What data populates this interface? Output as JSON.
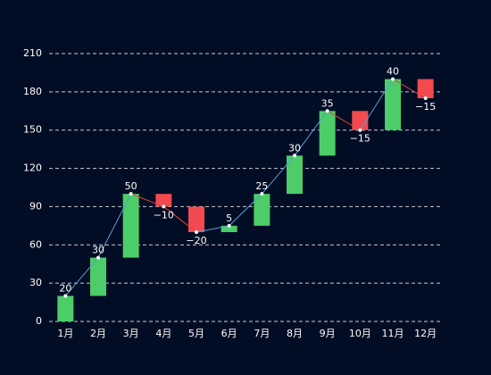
{
  "chart_data": {
    "type": "waterfall",
    "categories": [
      "1月",
      "2月",
      "3月",
      "4月",
      "5月",
      "6月",
      "7月",
      "8月",
      "9月",
      "10月",
      "11月",
      "12月"
    ],
    "values": [
      20,
      30,
      50,
      -10,
      -20,
      5,
      25,
      30,
      35,
      -15,
      40,
      -15
    ],
    "value_labels": [
      "20",
      "30",
      "50",
      "−10",
      "−20",
      "5",
      "25",
      "30",
      "35",
      "−15",
      "40",
      "−15"
    ],
    "colors": {
      "increase": "#4ccd68",
      "decrease": "#f24a4f",
      "line_up": "#5b9bd5",
      "line_down": "#e0463c"
    },
    "ylim": [
      0,
      210
    ],
    "yticks": [
      0,
      30,
      60,
      90,
      120,
      150,
      180,
      210
    ],
    "grid": true
  }
}
